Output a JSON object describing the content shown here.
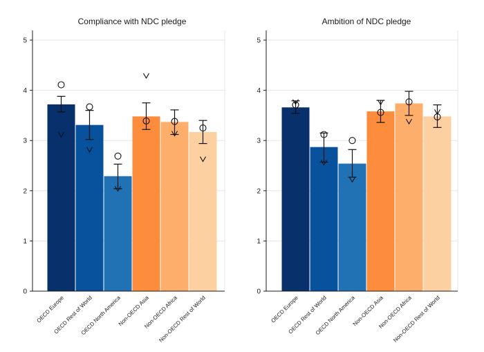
{
  "chart_data": [
    {
      "type": "bar",
      "title": "Compliance with NDC pledge",
      "xlabel": "",
      "ylabel": "",
      "ylim": [
        0,
        5.2
      ],
      "yticks": [
        "0",
        "1",
        "2",
        "3",
        "4",
        "5"
      ],
      "grid": true,
      "categories": [
        "OECD Europe",
        "OECD Rest of World",
        "OECD North America",
        "Non-OECD Asia",
        "Non-OECD Africa",
        "Non-OECD Rest of World"
      ],
      "colors": [
        "#08306b",
        "#08519c",
        "#2171b5",
        "#fd8d3c",
        "#fdae6b",
        "#fdd0a2"
      ],
      "values": [
        3.72,
        3.31,
        2.29,
        3.48,
        3.37,
        3.17
      ],
      "error_low": [
        3.57,
        3.02,
        2.04,
        3.22,
        3.12,
        2.94
      ],
      "error_high": [
        3.88,
        3.6,
        2.53,
        3.75,
        3.61,
        3.4
      ],
      "circle_markers": [
        4.11,
        3.67,
        2.69,
        3.39,
        3.38,
        3.25
      ],
      "v_markers": [
        3.12,
        2.82,
        2.04,
        4.29,
        3.14,
        2.63
      ]
    },
    {
      "type": "bar",
      "title": "Ambition of NDC pledge",
      "xlabel": "",
      "ylabel": "",
      "ylim": [
        0,
        5.2
      ],
      "yticks": [
        "0",
        "1",
        "2",
        "3",
        "4",
        "5"
      ],
      "grid": true,
      "categories": [
        "OECD Europe",
        "OECD Rest of World",
        "OECD North America",
        "Non-OECD Asia",
        "Non-OECD Africa",
        "Non-OECD Rest of World"
      ],
      "colors": [
        "#08306b",
        "#08519c",
        "#2171b5",
        "#fd8d3c",
        "#fdae6b",
        "#fdd0a2"
      ],
      "values": [
        3.66,
        2.87,
        2.54,
        3.58,
        3.74,
        3.48
      ],
      "error_low": [
        3.54,
        2.57,
        2.27,
        3.36,
        3.5,
        3.26
      ],
      "error_high": [
        3.79,
        3.15,
        2.82,
        3.8,
        3.98,
        3.71
      ],
      "circle_markers": [
        3.71,
        3.12,
        3.0,
        3.56,
        3.77,
        3.47
      ],
      "v_markers": [
        3.77,
        2.56,
        2.22,
        3.76,
        3.38,
        3.57
      ]
    }
  ]
}
